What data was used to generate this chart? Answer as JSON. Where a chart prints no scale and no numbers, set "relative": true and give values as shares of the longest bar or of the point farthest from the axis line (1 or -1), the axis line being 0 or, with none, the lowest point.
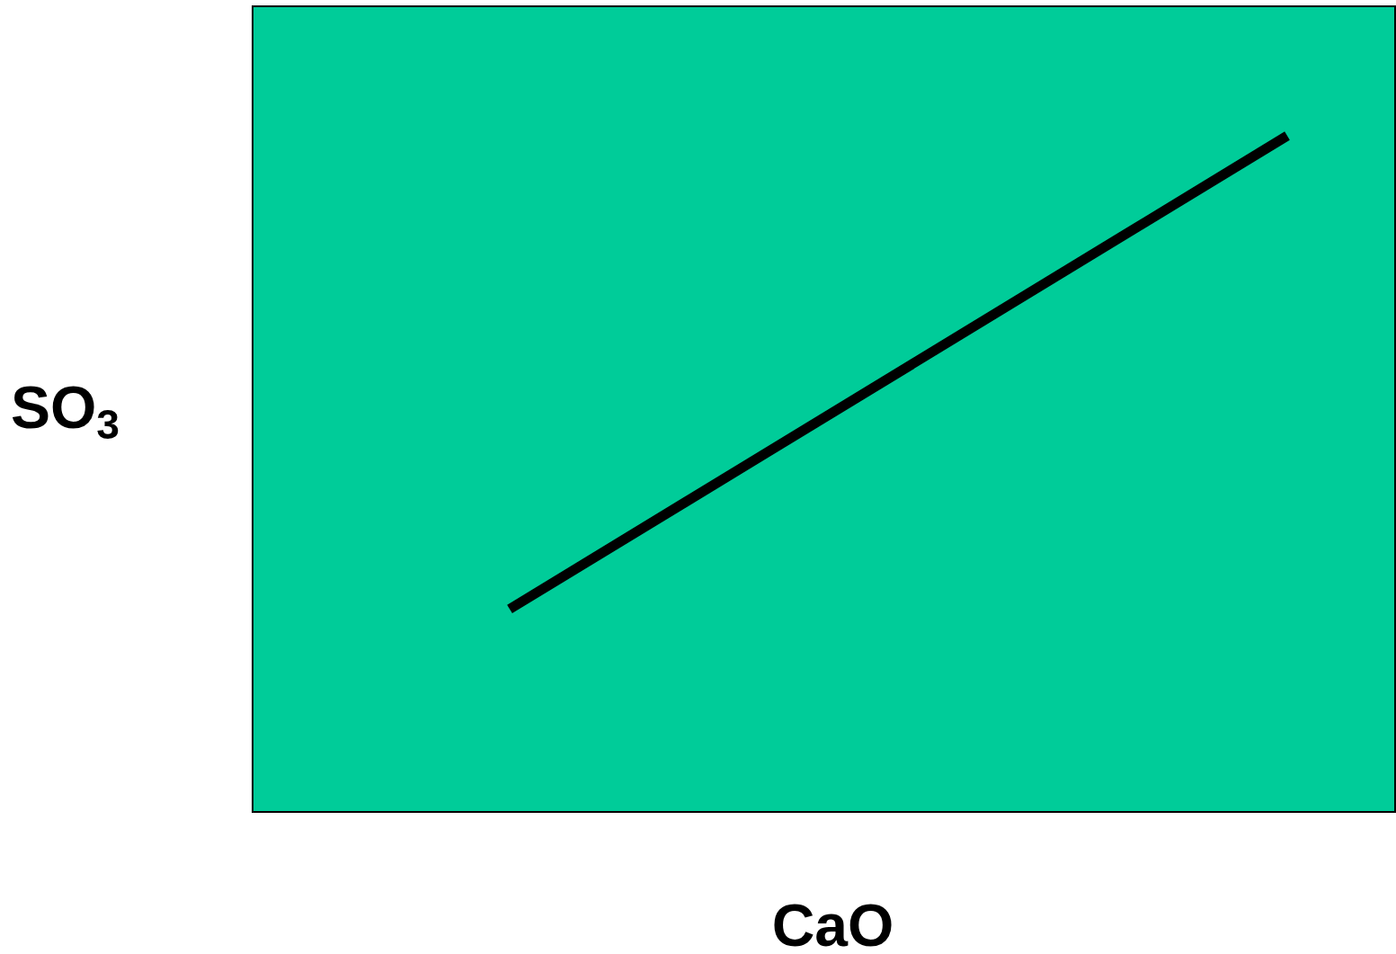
{
  "chart_data": {
    "type": "line",
    "relative": true,
    "xlabel": "CaO",
    "ylabel": "SO$_{3}$",
    "categories": [
      null,
      null
    ],
    "series": [
      {
        "color": "#000000",
        "values": [
          0.3,
          1
        ]
      }
    ],
    "grid": false,
    "marker": "none",
    "line_style": "solid",
    "tick_labels": false
  }
}
